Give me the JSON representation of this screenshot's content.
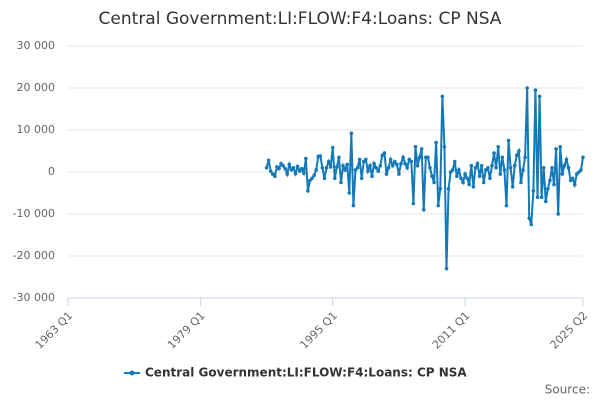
{
  "chart_data": {
    "type": "line",
    "title": "Central Government:LI:FLOW:F4:Loans: CP NSA",
    "source": "Source:",
    "x": [
      "1987 Q1",
      "1987 Q2",
      "1987 Q3",
      "1987 Q4",
      "1988 Q1",
      "1988 Q2",
      "1988 Q3",
      "1988 Q4",
      "1989 Q1",
      "1989 Q2",
      "1989 Q3",
      "1989 Q4",
      "1990 Q1",
      "1990 Q2",
      "1990 Q3",
      "1990 Q4",
      "1991 Q1",
      "1991 Q2",
      "1991 Q3",
      "1991 Q4",
      "1992 Q1",
      "1992 Q2",
      "1992 Q3",
      "1992 Q4",
      "1993 Q1",
      "1993 Q2",
      "1993 Q3",
      "1993 Q4",
      "1994 Q1",
      "1994 Q2",
      "1994 Q3",
      "1994 Q4",
      "1995 Q1",
      "1995 Q2",
      "1995 Q3",
      "1995 Q4",
      "1996 Q1",
      "1996 Q2",
      "1996 Q3",
      "1996 Q4",
      "1997 Q1",
      "1997 Q2",
      "1997 Q3",
      "1997 Q4",
      "1998 Q1",
      "1998 Q2",
      "1998 Q3",
      "1998 Q4",
      "1999 Q1",
      "1999 Q2",
      "1999 Q3",
      "1999 Q4",
      "2000 Q1",
      "2000 Q2",
      "2000 Q3",
      "2000 Q4",
      "2001 Q1",
      "2001 Q2",
      "2001 Q3",
      "2001 Q4",
      "2002 Q1",
      "2002 Q2",
      "2002 Q3",
      "2002 Q4",
      "2003 Q1",
      "2003 Q2",
      "2003 Q3",
      "2003 Q4",
      "2004 Q1",
      "2004 Q2",
      "2004 Q3",
      "2004 Q4",
      "2005 Q1",
      "2005 Q2",
      "2005 Q3",
      "2005 Q4",
      "2006 Q1",
      "2006 Q2",
      "2006 Q3",
      "2006 Q4",
      "2007 Q1",
      "2007 Q2",
      "2007 Q3",
      "2007 Q4",
      "2008 Q1",
      "2008 Q2",
      "2008 Q3",
      "2008 Q4",
      "2009 Q1",
      "2009 Q2",
      "2009 Q3",
      "2009 Q4",
      "2010 Q1",
      "2010 Q2",
      "2010 Q3",
      "2010 Q4",
      "2011 Q1",
      "2011 Q2",
      "2011 Q3",
      "2011 Q4",
      "2012 Q1",
      "2012 Q2",
      "2012 Q3",
      "2012 Q4",
      "2013 Q1",
      "2013 Q2",
      "2013 Q3",
      "2013 Q4",
      "2014 Q1",
      "2014 Q2",
      "2014 Q3",
      "2014 Q4",
      "2015 Q1",
      "2015 Q2",
      "2015 Q3",
      "2015 Q4",
      "2016 Q1",
      "2016 Q2",
      "2016 Q3",
      "2016 Q4",
      "2017 Q1",
      "2017 Q2",
      "2017 Q3",
      "2017 Q4",
      "2018 Q1",
      "2018 Q2",
      "2018 Q3",
      "2018 Q4",
      "2019 Q1",
      "2019 Q2",
      "2019 Q3",
      "2019 Q4",
      "2020 Q1",
      "2020 Q2",
      "2020 Q3",
      "2020 Q4",
      "2021 Q1",
      "2021 Q2",
      "2021 Q3",
      "2021 Q4",
      "2022 Q1",
      "2022 Q2",
      "2022 Q3",
      "2022 Q4",
      "2023 Q1",
      "2023 Q2",
      "2023 Q3",
      "2023 Q4",
      "2024 Q1",
      "2024 Q2",
      "2024 Q3",
      "2024 Q4",
      "2025 Q1",
      "2025 Q2"
    ],
    "series": [
      {
        "name": "Central Government:LI:FLOW:F4:Loans: CP NSA",
        "color": "#1479b8",
        "values": [
          1000,
          2800,
          200,
          -500,
          -1000,
          1200,
          800,
          2000,
          1500,
          800,
          -500,
          1800,
          500,
          1000,
          -400,
          1300,
          200,
          800,
          -300,
          3200,
          -4500,
          -2000,
          -1500,
          -800,
          500,
          3700,
          3800,
          1000,
          -1500,
          1000,
          2500,
          1200,
          5800,
          -1500,
          1200,
          3500,
          -2500,
          1500,
          500,
          1800,
          -5000,
          9200,
          -8000,
          500,
          1000,
          3000,
          -1500,
          2500,
          3000,
          200,
          1500,
          -1000,
          2000,
          1000,
          200,
          1500,
          4000,
          4500,
          -500,
          1000,
          3000,
          1500,
          2500,
          1800,
          -500,
          2000,
          3500,
          2000,
          1000,
          3000,
          2500,
          -7500,
          6000,
          1500,
          3500,
          5500,
          -9000,
          3500,
          3500,
          1000,
          -1000,
          -2500,
          7000,
          -8000,
          -4000,
          18000,
          6000,
          -23000,
          -4000,
          0,
          500,
          2500,
          -1000,
          500,
          -1500,
          -2500,
          -500,
          -1500,
          -3000,
          1500,
          -3500,
          1000,
          2000,
          -1000,
          1500,
          -2500,
          500,
          1000,
          -1500,
          1500,
          4500,
          1000,
          6000,
          -500,
          3500,
          500,
          -8000,
          7500,
          1000,
          -3500,
          1500,
          4000,
          5000,
          -2500,
          500,
          3500,
          20000,
          -11000,
          -12500,
          -4500,
          19500,
          -6000,
          18000,
          -6000,
          1000,
          -7000,
          -4000,
          -2000,
          1000,
          -3000,
          5500,
          -10000,
          6000,
          -500,
          1500,
          3000,
          1000,
          -2000,
          -1500,
          -3000,
          -500,
          0,
          500,
          3500
        ]
      }
    ],
    "xlim": [
      "1963 Q1",
      "2025 Q2"
    ],
    "xticks": [
      "1963 Q1",
      "1979 Q1",
      "1995 Q1",
      "2011 Q1",
      "2025 Q2"
    ],
    "ylim": [
      -30000,
      30000
    ],
    "yticks": [
      {
        "value": -30000,
        "label": "-30 000"
      },
      {
        "value": -20000,
        "label": "-20 000"
      },
      {
        "value": -10000,
        "label": "-10 000"
      },
      0,
      {
        "value": 10000,
        "label": "10 000"
      },
      {
        "value": 20000,
        "label": "20 000"
      },
      {
        "value": 30000,
        "label": "30 000"
      }
    ],
    "grid": true
  }
}
